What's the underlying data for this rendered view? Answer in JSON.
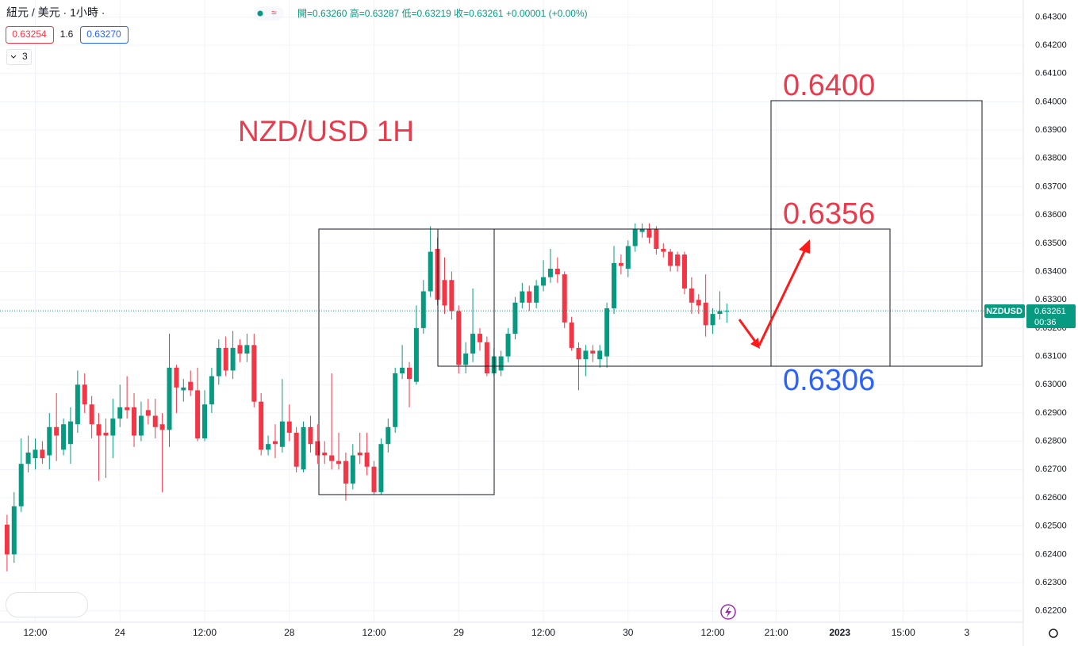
{
  "header": {
    "symbol": "紐元 / 美元 · 1小時 ·",
    "ohlc": "開=0.63260 高=0.63287 低=0.63219 收=0.63261 +0.00001 (+0.00%)",
    "bid": "0.63254",
    "spread": "1.6",
    "ask": "0.63270",
    "indicators": "3"
  },
  "price_tag": {
    "symbol": "NZDUSD",
    "price": "0.63261",
    "countdown": "00:36"
  },
  "annotations": {
    "title": "NZD/USD 1H",
    "target_high": "0.6400",
    "target_mid": "0.6356",
    "target_low": "0.6306"
  },
  "chart_data": {
    "type": "candlestick",
    "up_color": "#089981",
    "down_color": "#f23645",
    "grid": true,
    "open": [
      0.62505,
      0.624,
      0.6257,
      0.6272,
      0.6274,
      0.6277,
      0.6275,
      0.6285,
      0.6277,
      0.6279,
      0.6286,
      0.63,
      0.6293,
      0.6286,
      0.6283,
      0.6282,
      0.6288,
      0.6292,
      0.6292,
      0.6282,
      0.6291,
      0.6289,
      0.6286,
      0.6284,
      0.6306,
      0.6298,
      0.6301,
      0.6298,
      0.6281,
      0.6293,
      0.6303,
      0.6313,
      0.6305,
      0.6314,
      0.6311,
      0.6314,
      0.6294,
      0.6277,
      0.628,
      0.6278,
      0.6287,
      0.6283,
      0.627,
      0.6285,
      0.628,
      0.6276,
      0.6275,
      0.6273,
      0.6273,
      0.6265,
      0.6276,
      0.6276,
      0.6271,
      0.6262,
      0.6279,
      0.6285,
      0.6304,
      0.6306,
      0.6301,
      0.632,
      0.6333,
      0.6348,
      0.6337,
      0.6337,
      0.6326,
      0.6307,
      0.6311,
      0.6318,
      0.6315,
      0.6304,
      0.6305,
      0.631,
      0.6318,
      0.6329,
      0.6333,
      0.6329,
      0.6335,
      0.6338,
      0.6341,
      0.6339,
      0.6322,
      0.6313,
      0.6309,
      0.6312,
      0.6309,
      0.631,
      0.6327,
      0.6343,
      0.6341,
      0.6349,
      0.6354,
      0.6355,
      0.6355,
      0.6348,
      0.6347,
      0.6346,
      0.6346,
      0.6334,
      0.633,
      0.6329,
      0.6321,
      0.6325,
      0.6326
    ],
    "close": [
      0.624,
      0.6257,
      0.6272,
      0.6276,
      0.6277,
      0.6274,
      0.6285,
      0.6282,
      0.6286,
      0.6287,
      0.63,
      0.6293,
      0.6286,
      0.6282,
      0.6282,
      0.6288,
      0.6292,
      0.6291,
      0.6282,
      0.6289,
      0.6289,
      0.6285,
      0.6284,
      0.6306,
      0.6299,
      0.6299,
      0.6298,
      0.6281,
      0.6293,
      0.6303,
      0.6313,
      0.6305,
      0.6313,
      0.6311,
      0.6314,
      0.6294,
      0.6277,
      0.6279,
      0.6279,
      0.6287,
      0.6283,
      0.6271,
      0.6285,
      0.6279,
      0.6275,
      0.6275,
      0.6273,
      0.6272,
      0.6265,
      0.6275,
      0.6275,
      0.6271,
      0.6262,
      0.6279,
      0.6285,
      0.6304,
      0.6306,
      0.6302,
      0.632,
      0.6333,
      0.6347,
      0.633,
      0.6328,
      0.6326,
      0.6307,
      0.6311,
      0.6318,
      0.6315,
      0.6304,
      0.631,
      0.631,
      0.6318,
      0.6329,
      0.6333,
      0.6329,
      0.6335,
      0.6338,
      0.6341,
      0.6339,
      0.6322,
      0.6313,
      0.6309,
      0.6312,
      0.6311,
      0.6312,
      0.6327,
      0.6343,
      0.6342,
      0.6349,
      0.6355,
      0.6355,
      0.6352,
      0.6348,
      0.6347,
      0.6342,
      0.6342,
      0.6334,
      0.6329,
      0.6328,
      0.6321,
      0.6325,
      0.6326,
      0.63261
    ],
    "high": [
      0.6254,
      0.6262,
      0.6281,
      0.6282,
      0.6281,
      0.628,
      0.629,
      0.6297,
      0.6288,
      0.6292,
      0.6305,
      0.6304,
      0.6296,
      0.629,
      0.6288,
      0.6295,
      0.63,
      0.6303,
      0.6297,
      0.6294,
      0.6295,
      0.6295,
      0.629,
      0.6318,
      0.6307,
      0.6302,
      0.6305,
      0.6306,
      0.6298,
      0.6306,
      0.6316,
      0.6317,
      0.6319,
      0.6316,
      0.6318,
      0.6318,
      0.6297,
      0.6282,
      0.6286,
      0.6302,
      0.6293,
      0.6285,
      0.6287,
      0.6289,
      0.6286,
      0.628,
      0.6304,
      0.6283,
      0.6276,
      0.6279,
      0.6283,
      0.6283,
      0.6273,
      0.6281,
      0.6288,
      0.6306,
      0.6314,
      0.6308,
      0.6328,
      0.6337,
      0.6356,
      0.6352,
      0.6345,
      0.634,
      0.6328,
      0.6315,
      0.6334,
      0.632,
      0.6317,
      0.6313,
      0.6312,
      0.632,
      0.6331,
      0.6336,
      0.6335,
      0.6337,
      0.6344,
      0.6348,
      0.6345,
      0.634,
      0.6324,
      0.6315,
      0.6314,
      0.6314,
      0.6314,
      0.6329,
      0.6349,
      0.6346,
      0.6351,
      0.6357,
      0.6357,
      0.6357,
      0.6356,
      0.635,
      0.6348,
      0.6347,
      0.6347,
      0.6338,
      0.6332,
      0.6339,
      0.6327,
      0.6333,
      0.63287
    ],
    "low": [
      0.6234,
      0.6237,
      0.6255,
      0.6269,
      0.627,
      0.6272,
      0.627,
      0.6273,
      0.6275,
      0.6272,
      0.6283,
      0.629,
      0.6281,
      0.6266,
      0.6267,
      0.6274,
      0.6285,
      0.6288,
      0.6278,
      0.628,
      0.6286,
      0.6281,
      0.6262,
      0.6278,
      0.629,
      0.6294,
      0.6296,
      0.628,
      0.628,
      0.629,
      0.63,
      0.6303,
      0.6302,
      0.6308,
      0.6308,
      0.6292,
      0.6275,
      0.6275,
      0.6274,
      0.6276,
      0.628,
      0.6269,
      0.6269,
      0.6276,
      0.6272,
      0.6272,
      0.627,
      0.627,
      0.6259,
      0.6263,
      0.6272,
      0.6268,
      0.6261,
      0.6261,
      0.6276,
      0.6283,
      0.6302,
      0.6292,
      0.63,
      0.6318,
      0.6331,
      0.6328,
      0.6325,
      0.6323,
      0.6304,
      0.6304,
      0.6308,
      0.6312,
      0.6303,
      0.6303,
      0.6303,
      0.6308,
      0.6316,
      0.6327,
      0.6326,
      0.6327,
      0.6333,
      0.6336,
      0.6336,
      0.632,
      0.6312,
      0.6298,
      0.6303,
      0.6308,
      0.6306,
      0.6306,
      0.6325,
      0.6339,
      0.6338,
      0.6347,
      0.6352,
      0.635,
      0.6346,
      0.6345,
      0.634,
      0.634,
      0.6332,
      0.6325,
      0.6325,
      0.6317,
      0.6318,
      0.6323,
      0.63219
    ],
    "xlim": [
      -1,
      144
    ],
    "ylim": [
      0.6216,
      0.6436
    ],
    "xticks": [
      {
        "value": 4,
        "label": "12:00"
      },
      {
        "value": 16,
        "label": "24"
      },
      {
        "value": 28,
        "label": "12:00"
      },
      {
        "value": 40,
        "label": "28"
      },
      {
        "value": 52,
        "label": "12:00"
      },
      {
        "value": 64,
        "label": "29"
      },
      {
        "value": 76,
        "label": "12:00"
      },
      {
        "value": 88,
        "label": "30"
      },
      {
        "value": 100,
        "label": "12:00"
      },
      {
        "value": 109,
        "label": "21:00"
      },
      {
        "value": 118,
        "label": "2023"
      },
      {
        "value": 127,
        "label": "15:00"
      },
      {
        "value": 136,
        "label": "3"
      }
    ],
    "yticks": [
      {
        "value": 0.643,
        "label": "0.64300"
      },
      {
        "value": 0.642,
        "label": "0.64200"
      },
      {
        "value": 0.641,
        "label": "0.64100"
      },
      {
        "value": 0.64,
        "label": "0.64000"
      },
      {
        "value": 0.639,
        "label": "0.63900"
      },
      {
        "value": 0.638,
        "label": "0.63800"
      },
      {
        "value": 0.637,
        "label": "0.63700"
      },
      {
        "value": 0.636,
        "label": "0.63600"
      },
      {
        "value": 0.635,
        "label": "0.63500"
      },
      {
        "value": 0.634,
        "label": "0.63400"
      },
      {
        "value": 0.633,
        "label": "0.63300"
      },
      {
        "value": 0.632,
        "label": "0.63200"
      },
      {
        "value": 0.631,
        "label": "0.63100"
      },
      {
        "value": 0.63,
        "label": "0.63000"
      },
      {
        "value": 0.629,
        "label": "0.62900"
      },
      {
        "value": 0.628,
        "label": "0.62800"
      },
      {
        "value": 0.627,
        "label": "0.62700"
      },
      {
        "value": 0.626,
        "label": "0.62600"
      },
      {
        "value": 0.625,
        "label": "0.62500"
      },
      {
        "value": 0.624,
        "label": "0.62400"
      },
      {
        "value": 0.623,
        "label": "0.62300"
      },
      {
        "value": 0.622,
        "label": "0.62200"
      }
    ]
  }
}
